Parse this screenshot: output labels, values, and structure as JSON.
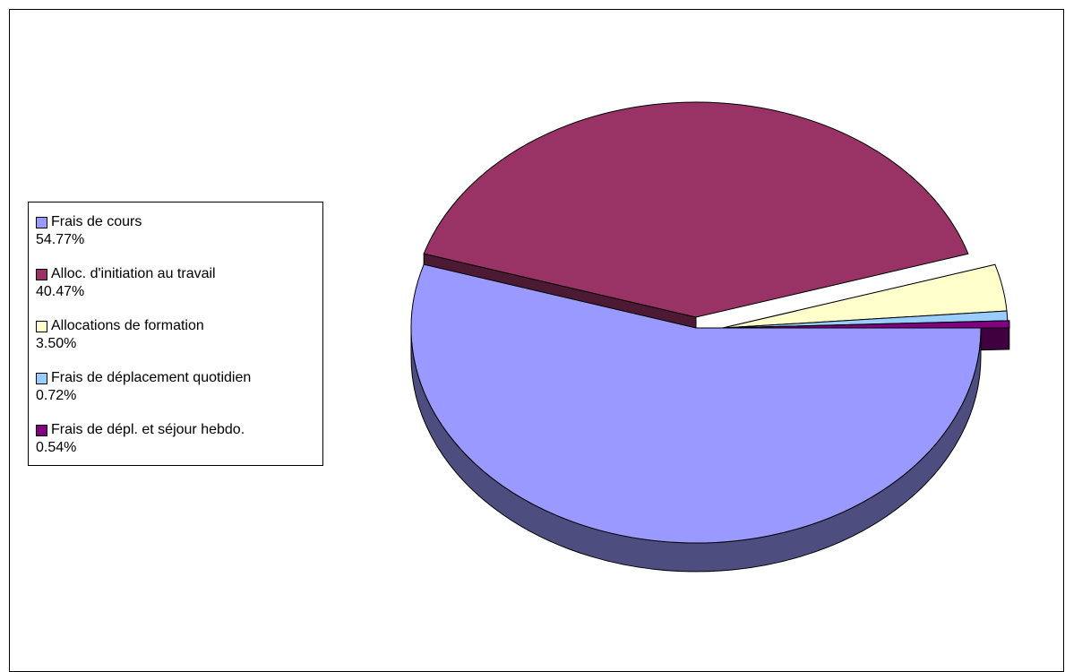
{
  "chart_data": {
    "type": "pie",
    "title": "",
    "slices": [
      {
        "label": "Frais de cours",
        "value": 54.77,
        "value_label": "54.77%",
        "color": "#9999FF",
        "side_color": "#4D4D80"
      },
      {
        "label": "Alloc. d'initiation au travail",
        "value": 40.47,
        "value_label": "40.47%",
        "color": "#993366",
        "side_color": "#4D1A33"
      },
      {
        "label": "Allocations de formation",
        "value": 3.5,
        "value_label": "3.50%",
        "color": "#FFFFCC",
        "side_color": "#808066"
      },
      {
        "label": "Frais de déplacement quotidien",
        "value": 0.72,
        "value_label": "0.72%",
        "color": "#99CCFF",
        "side_color": "#4D6680"
      },
      {
        "label": "Frais de dépl. et séjour hebdo.",
        "value": 0.54,
        "value_label": "0.54%",
        "color": "#800080",
        "side_color": "#400040"
      }
    ],
    "legend_position": "left",
    "style": "3d-exploded"
  }
}
